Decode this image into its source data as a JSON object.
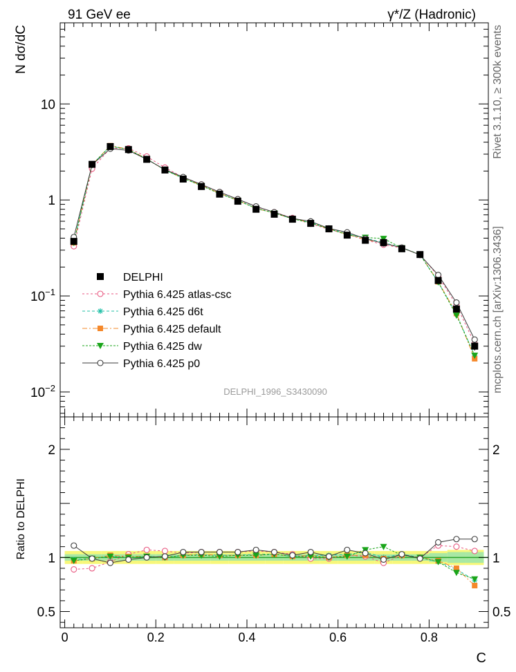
{
  "chart_data": {
    "type": "line",
    "title_left": "91 GeV ee",
    "title_right": "γ*/Z (Hadronic)",
    "side_label_top": "Rivet 3.1.10, ≥ 300k events",
    "side_label_bottom": "mcplots.cern.ch [arXiv:1306.3436]",
    "analysis_id": "DELPHI_1996_S3430090",
    "xlabel": "C",
    "xlim": [
      -0.01,
      0.93
    ],
    "top_panel": {
      "ylabel": "N dσ/dC",
      "yscale": "log",
      "ylim": [
        0.0055,
        70
      ],
      "ytick_labels": [
        {
          "base": "10",
          "exp": "−2",
          "value": 0.01
        },
        {
          "base": "10",
          "exp": "−1",
          "value": 0.1
        },
        {
          "base": "1",
          "exp": "",
          "value": 1
        },
        {
          "base": "10",
          "exp": "",
          "value": 10
        }
      ]
    },
    "ratio_panel": {
      "ylabel": "Ratio to DELPHI",
      "ylim": [
        0.35,
        2.3
      ],
      "ytick_labels": [
        "0.5",
        "1",
        "2"
      ],
      "ytick_values": [
        0.5,
        1,
        2
      ]
    },
    "xtick_labels": [
      "0",
      "0.2",
      "0.4",
      "0.6",
      "0.8"
    ],
    "xtick_values": [
      0,
      0.2,
      0.4,
      0.6,
      0.8
    ],
    "x": [
      0.02,
      0.06,
      0.1,
      0.14,
      0.18,
      0.22,
      0.26,
      0.3,
      0.34,
      0.38,
      0.42,
      0.46,
      0.5,
      0.54,
      0.58,
      0.62,
      0.66,
      0.7,
      0.74,
      0.78,
      0.82,
      0.86,
      0.9
    ],
    "data_series": {
      "name": "DELPHI",
      "values": [
        0.37,
        2.35,
        3.6,
        3.35,
        2.65,
        2.05,
        1.65,
        1.38,
        1.15,
        0.97,
        0.8,
        0.71,
        0.63,
        0.57,
        0.5,
        0.43,
        0.38,
        0.36,
        0.31,
        0.27,
        0.145,
        0.073,
        0.03
      ],
      "errors": [
        0.02,
        0.08,
        0.1,
        0.08,
        0.06,
        0.05,
        0.04,
        0.03,
        0.03,
        0.02,
        0.02,
        0.02,
        0.015,
        0.015,
        0.012,
        0.01,
        0.01,
        0.01,
        0.008,
        0.007,
        0.005,
        0.004,
        0.003
      ],
      "band_inner": [
        0.03,
        0.03,
        0.03,
        0.03,
        0.03,
        0.03,
        0.03,
        0.03,
        0.03,
        0.03,
        0.03,
        0.03,
        0.03,
        0.03,
        0.03,
        0.03,
        0.03,
        0.03,
        0.03,
        0.03,
        0.04,
        0.05,
        0.05
      ],
      "band_outer": [
        0.06,
        0.06,
        0.06,
        0.06,
        0.06,
        0.06,
        0.06,
        0.06,
        0.06,
        0.06,
        0.06,
        0.06,
        0.06,
        0.06,
        0.06,
        0.06,
        0.06,
        0.06,
        0.06,
        0.06,
        0.06,
        0.07,
        0.07
      ]
    },
    "series": [
      {
        "name": "Pythia 6.425 atlas-csc",
        "color": "#e8567f",
        "marker": "open-circle",
        "dash": "3,3",
        "ratio": [
          0.89,
          0.9,
          0.96,
          1.03,
          1.07,
          1.06,
          1.04,
          1.05,
          1.05,
          1.05,
          1.06,
          1.05,
          1.03,
          0.99,
          0.99,
          1.02,
          1.01,
          0.95,
          1.02,
          1.0,
          1.11,
          1.1,
          1.06
        ]
      },
      {
        "name": "Pythia 6.425 d6t",
        "color": "#1fbfa6",
        "marker": "star",
        "dash": "4,3",
        "ratio": [
          0.98,
          0.99,
          1.01,
          1.0,
          1.01,
          1.0,
          1.02,
          1.03,
          1.02,
          1.02,
          1.03,
          1.03,
          1.01,
          1.02,
          1.02,
          1.03,
          1.05,
          1.0,
          1.03,
          1.0,
          0.96,
          0.89,
          0.79
        ]
      },
      {
        "name": "Pythia 6.425 default",
        "color": "#f5882a",
        "marker": "square",
        "dash": "7,3,2,3",
        "ratio": [
          0.97,
          0.99,
          1.02,
          1.01,
          1.01,
          1.0,
          1.02,
          1.03,
          1.02,
          1.02,
          1.02,
          1.03,
          1.01,
          1.02,
          1.0,
          1.02,
          1.02,
          0.99,
          1.02,
          1.0,
          0.97,
          0.9,
          0.74
        ]
      },
      {
        "name": "Pythia 6.425 dw",
        "color": "#1aa51a",
        "marker": "triangle-down",
        "dash": "3,2",
        "ratio": [
          0.97,
          0.99,
          1.01,
          1.0,
          1.01,
          1.0,
          1.02,
          1.02,
          1.01,
          1.02,
          1.02,
          1.03,
          1.01,
          1.01,
          1.0,
          1.01,
          1.07,
          1.1,
          1.02,
          1.0,
          0.96,
          0.86,
          0.8
        ]
      },
      {
        "name": "Pythia 6.425 p0",
        "color": "#3a3a3a",
        "marker": "open-circle",
        "dash": "",
        "ratio": [
          1.11,
          0.99,
          0.95,
          0.98,
          1.0,
          1.01,
          1.05,
          1.05,
          1.05,
          1.05,
          1.07,
          1.05,
          1.02,
          1.05,
          1.01,
          1.07,
          1.04,
          0.98,
          1.03,
          0.99,
          1.14,
          1.17,
          1.17
        ]
      }
    ]
  }
}
